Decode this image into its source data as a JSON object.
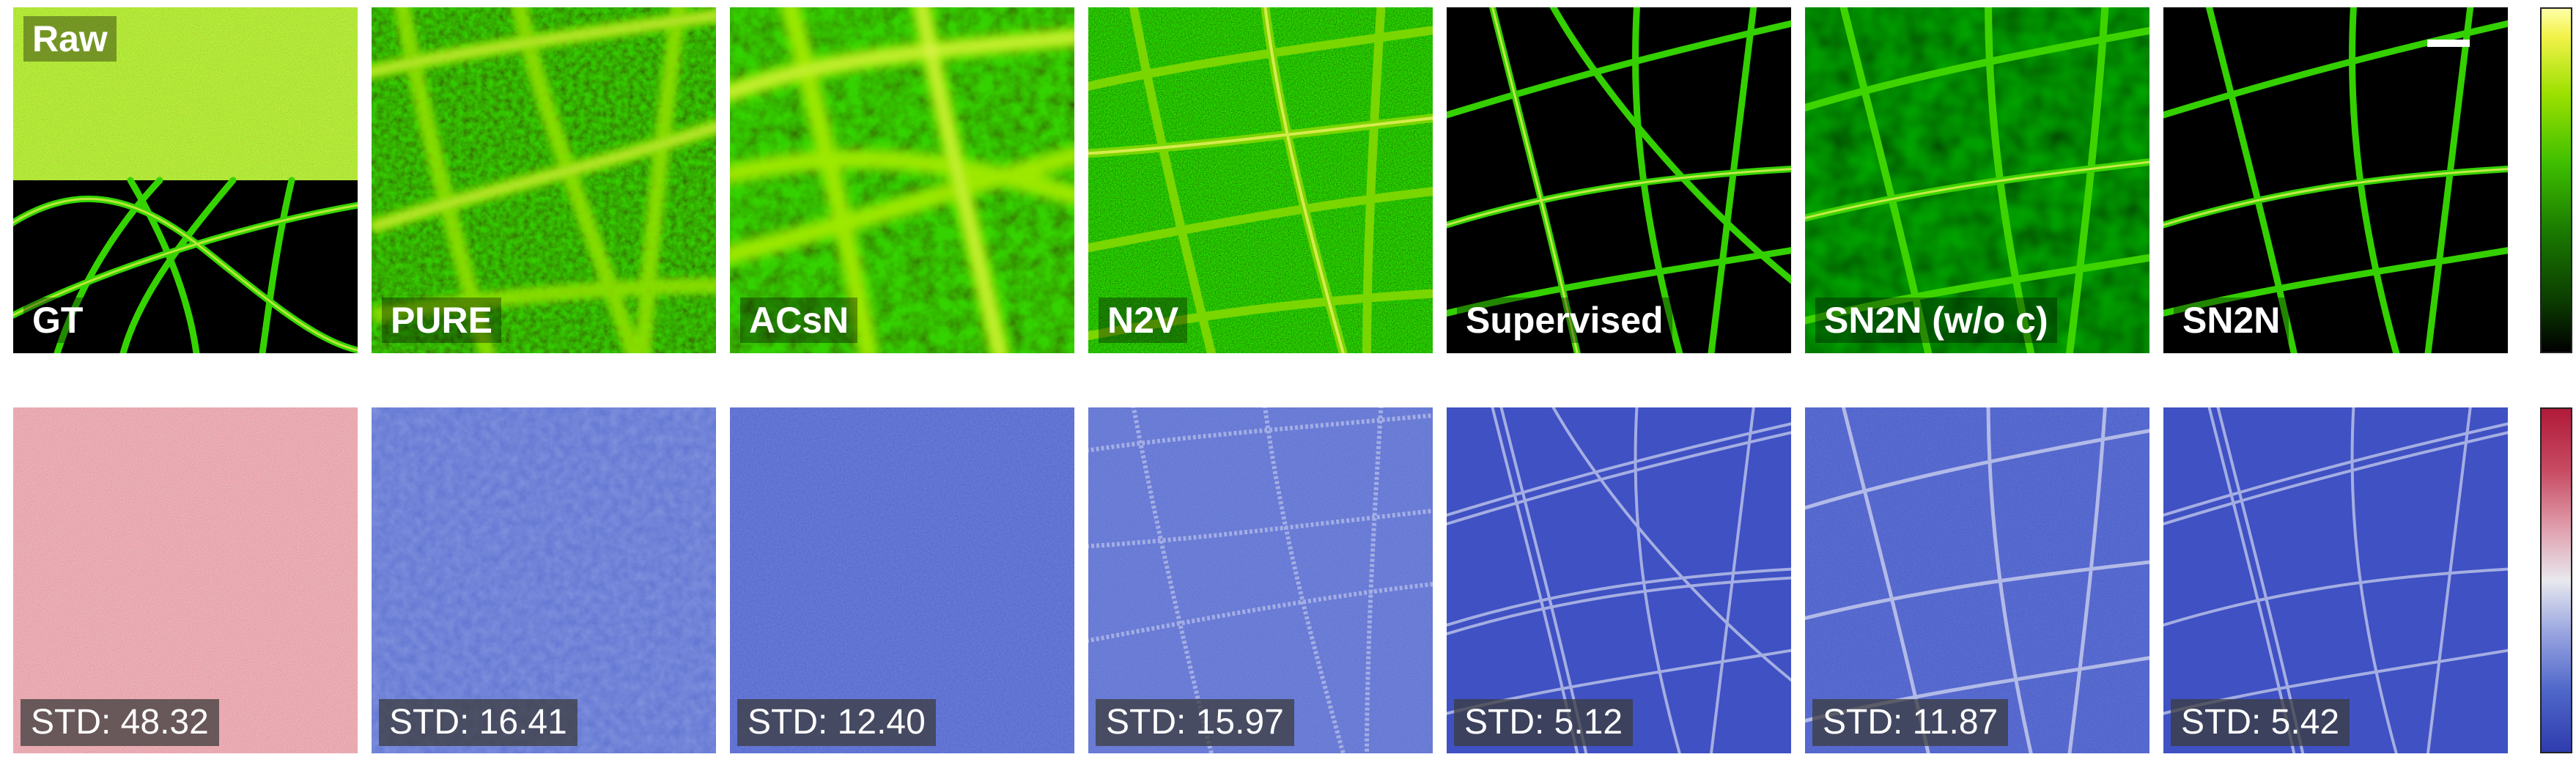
{
  "top_row": {
    "panels": [
      {
        "name": "raw-gt",
        "label_top": "Raw",
        "label": "GT"
      },
      {
        "name": "pure",
        "label": "PURE"
      },
      {
        "name": "acsn",
        "label": "ACsN"
      },
      {
        "name": "n2v",
        "label": "N2V"
      },
      {
        "name": "supervised",
        "label": "Supervised"
      },
      {
        "name": "sn2n-woc",
        "label": "SN2N (w/o c)"
      },
      {
        "name": "sn2n",
        "label": "SN2N"
      }
    ]
  },
  "bottom_row": {
    "panels": [
      {
        "std": "STD: 48.32"
      },
      {
        "std": "STD: 16.41"
      },
      {
        "std": "STD: 12.40"
      },
      {
        "std": "STD: 15.97"
      },
      {
        "std": "STD: 5.12"
      },
      {
        "std": "STD: 11.87"
      },
      {
        "std": "STD: 5.42"
      }
    ]
  },
  "colors": {
    "filament_green": "#33e000",
    "filament_highlight": "#f5f55a",
    "std_map_blue": "#3d4fc2",
    "std_map_red": "#c43a55"
  }
}
